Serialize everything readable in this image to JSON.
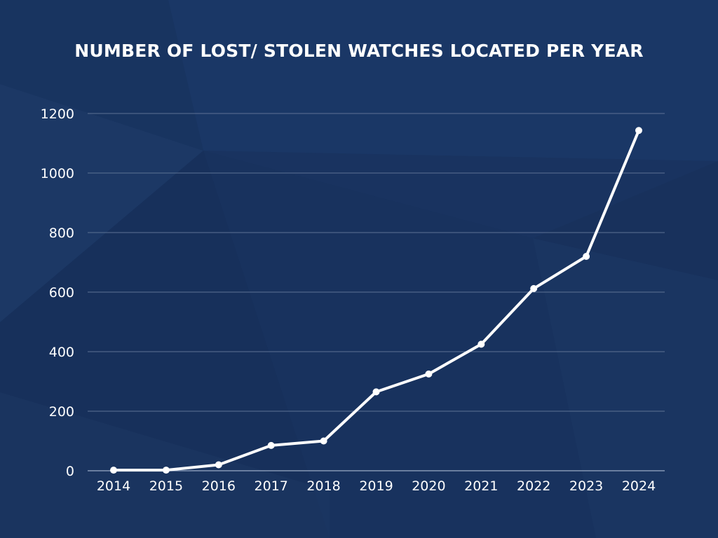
{
  "chart_data": {
    "type": "line",
    "title": "NUMBER OF LOST/ STOLEN WATCHES LOCATED PER YEAR",
    "xlabel": "",
    "ylabel": "",
    "categories": [
      "2014",
      "2015",
      "2016",
      "2017",
      "2018",
      "2019",
      "2020",
      "2021",
      "2022",
      "2023",
      "2024"
    ],
    "series": [
      {
        "values": [
          2,
          2,
          20,
          85,
          100,
          265,
          325,
          425,
          612,
          720,
          1143
        ]
      }
    ],
    "ylim": [
      0,
      1200
    ],
    "yticks": [
      0,
      200,
      400,
      600,
      800,
      1000,
      1200
    ],
    "grid": true,
    "legend": "none"
  },
  "colors": {
    "background": "#18325e",
    "line": "#ffffff",
    "grid": "#5d7294",
    "text": "#ffffff"
  }
}
